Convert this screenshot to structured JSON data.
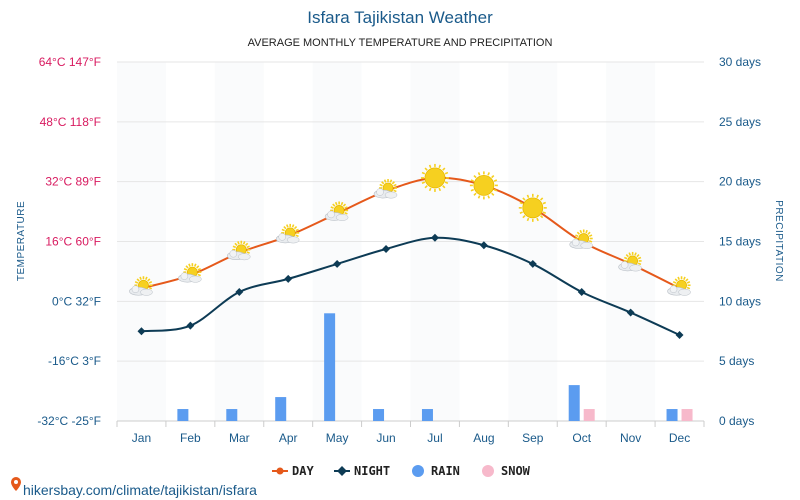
{
  "title": "Isfara Tajikistan Weather",
  "subtitle": "AVERAGE MONTHLY TEMPERATURE AND PRECIPITATION",
  "source": "hikersbay.com/climate/tajikistan/isfara",
  "colors": {
    "day": "#e5591b",
    "night": "#0d3b55",
    "rain": "#5b9cf0",
    "snow": "#f7b9cb",
    "sun": "#f6d020",
    "temp_axis": "#d81b60",
    "precip_axis": "#1a5a8a"
  },
  "chart_data": {
    "type": "line",
    "categories": [
      "Jan",
      "Feb",
      "Mar",
      "Apr",
      "May",
      "Jun",
      "Jul",
      "Aug",
      "Sep",
      "Oct",
      "Nov",
      "Dec"
    ],
    "ylabel": "TEMPERATURE",
    "y2label": "PRECIPITATION",
    "ylim": [
      -32,
      64
    ],
    "y2lim": [
      0,
      30
    ],
    "yticks": [
      {
        "value": 64,
        "label": "64°C 147°F"
      },
      {
        "value": 48,
        "label": "48°C 118°F"
      },
      {
        "value": 32,
        "label": "32°C 89°F"
      },
      {
        "value": 16,
        "label": "16°C 60°F"
      },
      {
        "value": 0,
        "label": "0°C 32°F"
      },
      {
        "value": -16,
        "label": "-16°C 3°F"
      },
      {
        "value": -32,
        "label": "-32°C -25°F"
      }
    ],
    "y2ticks": [
      {
        "value": 30,
        "label": "30 days"
      },
      {
        "value": 25,
        "label": "25 days"
      },
      {
        "value": 20,
        "label": "20 days"
      },
      {
        "value": 15,
        "label": "15 days"
      },
      {
        "value": 10,
        "label": "10 days"
      },
      {
        "value": 5,
        "label": "5 days"
      },
      {
        "value": 0,
        "label": "0 days"
      }
    ],
    "series": [
      {
        "name": "DAY",
        "axis": "temperature",
        "values": [
          3.5,
          7,
          13,
          17.5,
          23.5,
          29.5,
          33,
          31,
          25,
          16,
          10,
          3.5
        ]
      },
      {
        "name": "NIGHT",
        "axis": "temperature",
        "values": [
          -8,
          -6.5,
          2.5,
          6,
          10,
          14,
          17,
          15,
          10,
          2.5,
          -3,
          -9
        ]
      },
      {
        "name": "RAIN",
        "type": "bar",
        "axis": "precipitation",
        "values": [
          0,
          1,
          1,
          2,
          9,
          1,
          1,
          0,
          0,
          3,
          0,
          1
        ]
      },
      {
        "name": "SNOW",
        "type": "bar",
        "axis": "precipitation",
        "values": [
          0,
          0,
          0,
          0,
          0,
          0,
          0,
          0,
          0,
          1,
          0,
          1
        ]
      }
    ],
    "weather_icons": [
      "partly-cloudy-icon",
      "partly-cloudy-icon",
      "partly-cloudy-icon",
      "partly-cloudy-icon",
      "partly-cloudy-icon",
      "partly-cloudy-icon",
      "sun-icon",
      "sun-icon",
      "sun-icon",
      "partly-cloudy-icon",
      "partly-cloudy-icon",
      "partly-cloudy-icon"
    ],
    "legend": [
      "DAY",
      "NIGHT",
      "RAIN",
      "SNOW"
    ],
    "legend_position": "bottom",
    "grid": true
  }
}
